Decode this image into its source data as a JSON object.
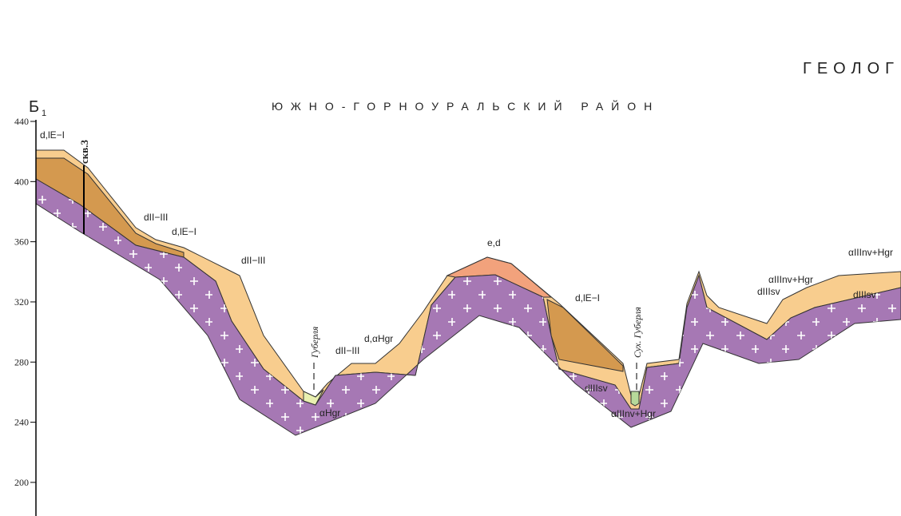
{
  "title": "ГЕОЛОГ",
  "region": "ЮЖНО-ГОРНОУРАЛЬСКИЙ РАЙОН",
  "profile": {
    "letter": "Б",
    "index": "1"
  },
  "borehole": "скв.3",
  "rivers": [
    "Губерля",
    "Сух. Губерля"
  ],
  "axis": {
    "ticks": [
      200,
      240,
      280,
      320,
      360,
      400,
      440
    ]
  },
  "labels": [
    "d,lE−I",
    "dII−III",
    "d,lE−I",
    "dII−III",
    "αHgr",
    "dII−III",
    "d,αHgr",
    "e,d",
    "d,lE−I",
    "dIIIsv",
    "αIIInv+Hgr",
    "αIIInv+Hgr",
    "dIIIsv",
    "αIIInv+Hgr",
    "dIIIsv"
  ]
}
